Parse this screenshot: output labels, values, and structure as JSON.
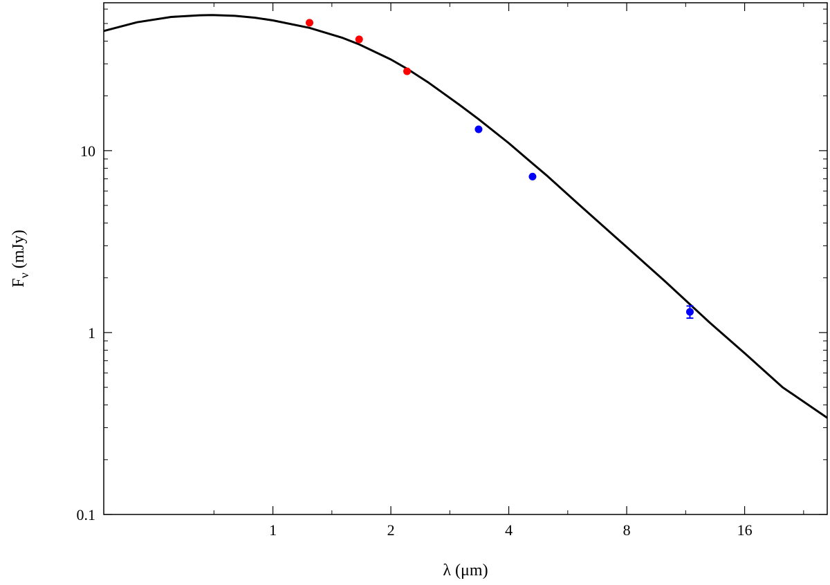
{
  "chart_data": {
    "type": "scatter",
    "title": "",
    "xlabel": "λ (μm)",
    "ylabel_main": "F",
    "ylabel_sub": "ν",
    "ylabel_rest": " (mJy)",
    "x_scale": "log2",
    "y_scale": "log10",
    "xlim": [
      0.37,
      26
    ],
    "ylim": [
      0.1,
      65
    ],
    "x_ticks": [
      1,
      2,
      4,
      8,
      16
    ],
    "x_tick_labels": [
      "1",
      "2",
      "4",
      "8",
      "16"
    ],
    "y_ticks": [
      0.1,
      1,
      10
    ],
    "y_tick_labels": [
      "0.1",
      "1",
      "10"
    ],
    "grid": false,
    "legend": "none",
    "series": [
      {
        "kind": "points",
        "color": "#ff0000",
        "x": [
          1.24,
          1.66,
          2.2
        ],
        "y": [
          50.5,
          40.9,
          27.3
        ]
      },
      {
        "kind": "points",
        "color": "#0000ff",
        "x": [
          3.35,
          4.6,
          11.6
        ],
        "y": [
          13.1,
          7.2,
          1.3
        ],
        "yerr": [
          0.0,
          0.0,
          0.1
        ]
      },
      {
        "kind": "line",
        "color": "#000000",
        "x": [
          0.37,
          0.45,
          0.55,
          0.65,
          0.7,
          0.8,
          0.9,
          1.0,
          1.24,
          1.5,
          1.66,
          2.0,
          2.2,
          2.5,
          3.0,
          3.35,
          4.0,
          4.6,
          5.0,
          6.0,
          8.0,
          10.0,
          11.6,
          13.0,
          16.0,
          20.0,
          26.0
        ],
        "y": [
          45.5,
          50.8,
          54.3,
          55.5,
          55.6,
          55.1,
          53.8,
          52.0,
          47.3,
          41.8,
          38.4,
          31.7,
          28.2,
          23.6,
          17.8,
          14.9,
          11.0,
          8.5,
          7.3,
          5.12,
          2.95,
          1.92,
          1.43,
          1.14,
          0.77,
          0.5,
          0.34
        ]
      }
    ]
  }
}
